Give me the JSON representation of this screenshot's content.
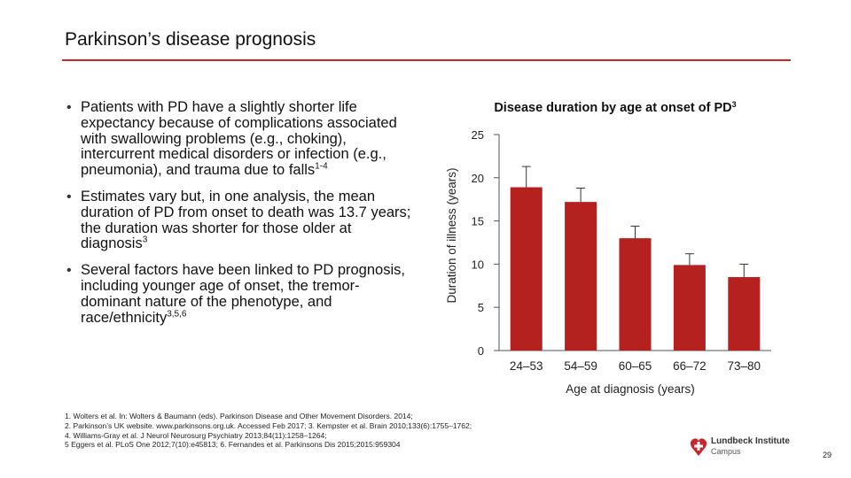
{
  "slide": {
    "title": "Parkinson’s disease prognosis",
    "page_number": "29",
    "accent_color": "#c8262a"
  },
  "bullets": [
    {
      "text": "Patients with PD have a slightly shorter life expectancy because of complications associated with swallowing problems (e.g., choking), intercurrent medical disorders or infection (e.g., pneumonia), and trauma due to falls",
      "sup": "1-4"
    },
    {
      "text": "Estimates vary but, in one analysis, the mean duration of PD from onset to death was 13.7 years; the duration was shorter for those older at diagnosis",
      "sup": "3"
    },
    {
      "text": "Several factors have been linked to PD prognosis, including younger age of onset, the tremor-dominant nature of the phenotype, and race/ethnicity",
      "sup": "3,5,6"
    }
  ],
  "chart_data": {
    "type": "bar",
    "title": "Disease duration by age at onset of PD",
    "title_sup": "3",
    "xlabel": "Age at diagnosis (years)",
    "ylabel": "Duration of illness (years)",
    "categories": [
      "24–53",
      "54–59",
      "60–65",
      "66–72",
      "73–80"
    ],
    "values": [
      18.9,
      17.2,
      13.0,
      9.9,
      8.5
    ],
    "error_upper": [
      21.3,
      18.8,
      14.4,
      11.2,
      10.0
    ],
    "ylim": [
      0,
      25
    ],
    "yticks": [
      0,
      5,
      10,
      15,
      20,
      25
    ],
    "bar_color": "#b5211e",
    "grid": false,
    "legend": "none"
  },
  "references": [
    "1. Wolters et al. In: Wolters & Baumann (eds). Parkinson Disease and Other Movement Disorders. 2014;",
    "2. Parkinson’s UK website. www.parkinsons.org.uk. Accessed Feb 2017; 3. Kempster et al. Brain 2010;133(6):1755–1762;",
    "4. Williams-Gray et al. J Neurol Neurosurg Psychiatry 2013;84(11):1258–1264;",
    "5 Eggers et al. PLoS One 2012;7(10):e45813; 6. Fernandes et al. Parkinsons Dis 2015;2015:959304"
  ],
  "logo": {
    "name": "Lundbeck Institute",
    "sub": "Campus",
    "icon": "heart-cross-icon"
  }
}
